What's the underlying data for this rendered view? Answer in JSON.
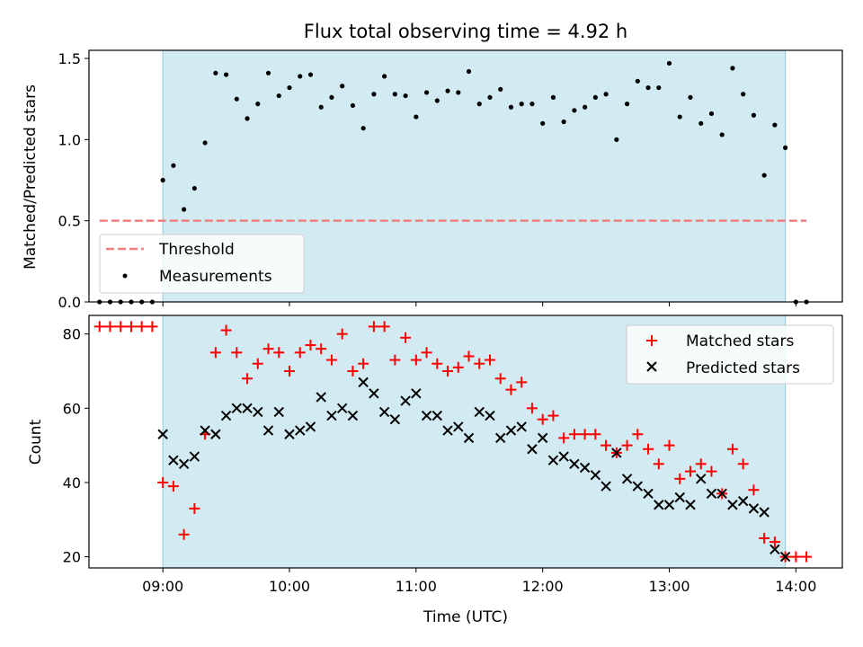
{
  "title": "Flux total observing time = 4.92 h",
  "shade_span": [
    "09:00",
    "13:55"
  ],
  "colors": {
    "shade": "#add8e6",
    "threshold": "#f08080",
    "measurements": "#000000",
    "matched": "#ff0000",
    "predicted": "#000000"
  },
  "chart_data": [
    {
      "type": "scatter",
      "ylabel": "Matched/Predicted stars",
      "xlim": [
        "08:25",
        "14:22"
      ],
      "ylim": [
        0,
        1.55
      ],
      "yticks": [
        0.0,
        0.5,
        1.0,
        1.5
      ],
      "ytick_labels": [
        "0.0",
        "0.5",
        "1.0",
        "1.5"
      ],
      "legend": {
        "placement": "lower-left",
        "entries": [
          "Threshold",
          "Measurements"
        ]
      },
      "threshold": {
        "name": "Threshold",
        "value": 0.5,
        "x_range": [
          "08:30",
          "14:05"
        ]
      },
      "measurements": {
        "name": "Measurements",
        "x": [
          "08:30",
          "08:35",
          "08:40",
          "08:45",
          "08:50",
          "08:55",
          "09:00",
          "09:05",
          "09:10",
          "09:15",
          "09:20",
          "09:25",
          "09:30",
          "09:35",
          "09:40",
          "09:45",
          "09:50",
          "09:55",
          "10:00",
          "10:05",
          "10:10",
          "10:15",
          "10:20",
          "10:25",
          "10:30",
          "10:35",
          "10:40",
          "10:45",
          "10:50",
          "10:55",
          "11:00",
          "11:05",
          "11:10",
          "11:15",
          "11:20",
          "11:25",
          "11:30",
          "11:35",
          "11:40",
          "11:45",
          "11:50",
          "11:55",
          "12:00",
          "12:05",
          "12:10",
          "12:15",
          "12:20",
          "12:25",
          "12:30",
          "12:35",
          "12:40",
          "12:45",
          "12:50",
          "12:55",
          "13:00",
          "13:05",
          "13:10",
          "13:15",
          "13:20",
          "13:25",
          "13:30",
          "13:35",
          "13:40",
          "13:45",
          "13:50",
          "13:55",
          "14:00",
          "14:05"
        ],
        "y": [
          0,
          0,
          0,
          0,
          0,
          0,
          0.75,
          0.84,
          0.57,
          0.7,
          0.98,
          1.41,
          1.4,
          1.25,
          1.13,
          1.22,
          1.41,
          1.27,
          1.32,
          1.39,
          1.4,
          1.2,
          1.26,
          1.33,
          1.21,
          1.07,
          1.28,
          1.39,
          1.28,
          1.27,
          1.14,
          1.29,
          1.24,
          1.3,
          1.29,
          1.42,
          1.22,
          1.26,
          1.31,
          1.2,
          1.22,
          1.22,
          1.1,
          1.26,
          1.11,
          1.18,
          1.2,
          1.26,
          1.28,
          1.0,
          1.22,
          1.36,
          1.32,
          1.32,
          1.47,
          1.14,
          1.26,
          1.1,
          1.16,
          1.03,
          1.44,
          1.28,
          1.15,
          0.78,
          1.09,
          0.95,
          0,
          0
        ]
      }
    },
    {
      "type": "scatter",
      "xlabel": "Time (UTC)",
      "ylabel": "Count",
      "xlim": [
        "08:25",
        "14:22"
      ],
      "ylim": [
        17,
        85
      ],
      "yticks": [
        20,
        40,
        60,
        80
      ],
      "ytick_labels": [
        "20",
        "40",
        "60",
        "80"
      ],
      "xticks": [
        "09:00",
        "10:00",
        "11:00",
        "12:00",
        "13:00",
        "14:00"
      ],
      "legend": {
        "placement": "upper-right",
        "entries": [
          "Matched stars",
          "Predicted stars"
        ]
      },
      "series": [
        {
          "name": "Matched stars",
          "marker": "+",
          "x": [
            "08:30",
            "08:35",
            "08:40",
            "08:45",
            "08:50",
            "08:55",
            "09:00",
            "09:05",
            "09:10",
            "09:15",
            "09:20",
            "09:25",
            "09:30",
            "09:35",
            "09:40",
            "09:45",
            "09:50",
            "09:55",
            "10:00",
            "10:05",
            "10:10",
            "10:15",
            "10:20",
            "10:25",
            "10:30",
            "10:35",
            "10:40",
            "10:45",
            "10:50",
            "10:55",
            "11:00",
            "11:05",
            "11:10",
            "11:15",
            "11:20",
            "11:25",
            "11:30",
            "11:35",
            "11:40",
            "11:45",
            "11:50",
            "11:55",
            "12:00",
            "12:05",
            "12:10",
            "12:15",
            "12:20",
            "12:25",
            "12:30",
            "12:35",
            "12:40",
            "12:45",
            "12:50",
            "12:55",
            "13:00",
            "13:05",
            "13:10",
            "13:15",
            "13:20",
            "13:25",
            "13:30",
            "13:35",
            "13:40",
            "13:45",
            "13:50",
            "13:55",
            "14:00",
            "14:05"
          ],
          "y": [
            82,
            82,
            82,
            82,
            82,
            82,
            40,
            39,
            26,
            33,
            53,
            75,
            81,
            75,
            68,
            72,
            76,
            75,
            70,
            75,
            77,
            76,
            73,
            80,
            70,
            72,
            82,
            82,
            73,
            79,
            73,
            75,
            72,
            70,
            71,
            74,
            72,
            73,
            68,
            65,
            67,
            60,
            57,
            58,
            52,
            53,
            53,
            53,
            50,
            48,
            50,
            53,
            49,
            45,
            50,
            41,
            43,
            45,
            43,
            37,
            49,
            45,
            38,
            25,
            24,
            20,
            20,
            20
          ]
        },
        {
          "name": "Predicted stars",
          "marker": "x",
          "x": [
            "09:00",
            "09:05",
            "09:10",
            "09:15",
            "09:20",
            "09:25",
            "09:30",
            "09:35",
            "09:40",
            "09:45",
            "09:50",
            "09:55",
            "10:00",
            "10:05",
            "10:10",
            "10:15",
            "10:20",
            "10:25",
            "10:30",
            "10:35",
            "10:40",
            "10:45",
            "10:50",
            "10:55",
            "11:00",
            "11:05",
            "11:10",
            "11:15",
            "11:20",
            "11:25",
            "11:30",
            "11:35",
            "11:40",
            "11:45",
            "11:50",
            "11:55",
            "12:00",
            "12:05",
            "12:10",
            "12:15",
            "12:20",
            "12:25",
            "12:30",
            "12:35",
            "12:40",
            "12:45",
            "12:50",
            "12:55",
            "13:00",
            "13:05",
            "13:10",
            "13:15",
            "13:20",
            "13:25",
            "13:30",
            "13:35",
            "13:40",
            "13:45",
            "13:50",
            "13:55"
          ],
          "y": [
            53,
            46,
            45,
            47,
            54,
            53,
            58,
            60,
            60,
            59,
            54,
            59,
            53,
            54,
            55,
            63,
            58,
            60,
            58,
            67,
            64,
            59,
            57,
            62,
            64,
            58,
            58,
            54,
            55,
            52,
            59,
            58,
            52,
            54,
            55,
            49,
            52,
            46,
            47,
            45,
            44,
            42,
            39,
            48,
            41,
            39,
            37,
            34,
            34,
            36,
            34,
            41,
            37,
            37,
            34,
            35,
            33,
            32,
            22,
            20
          ]
        }
      ]
    }
  ]
}
